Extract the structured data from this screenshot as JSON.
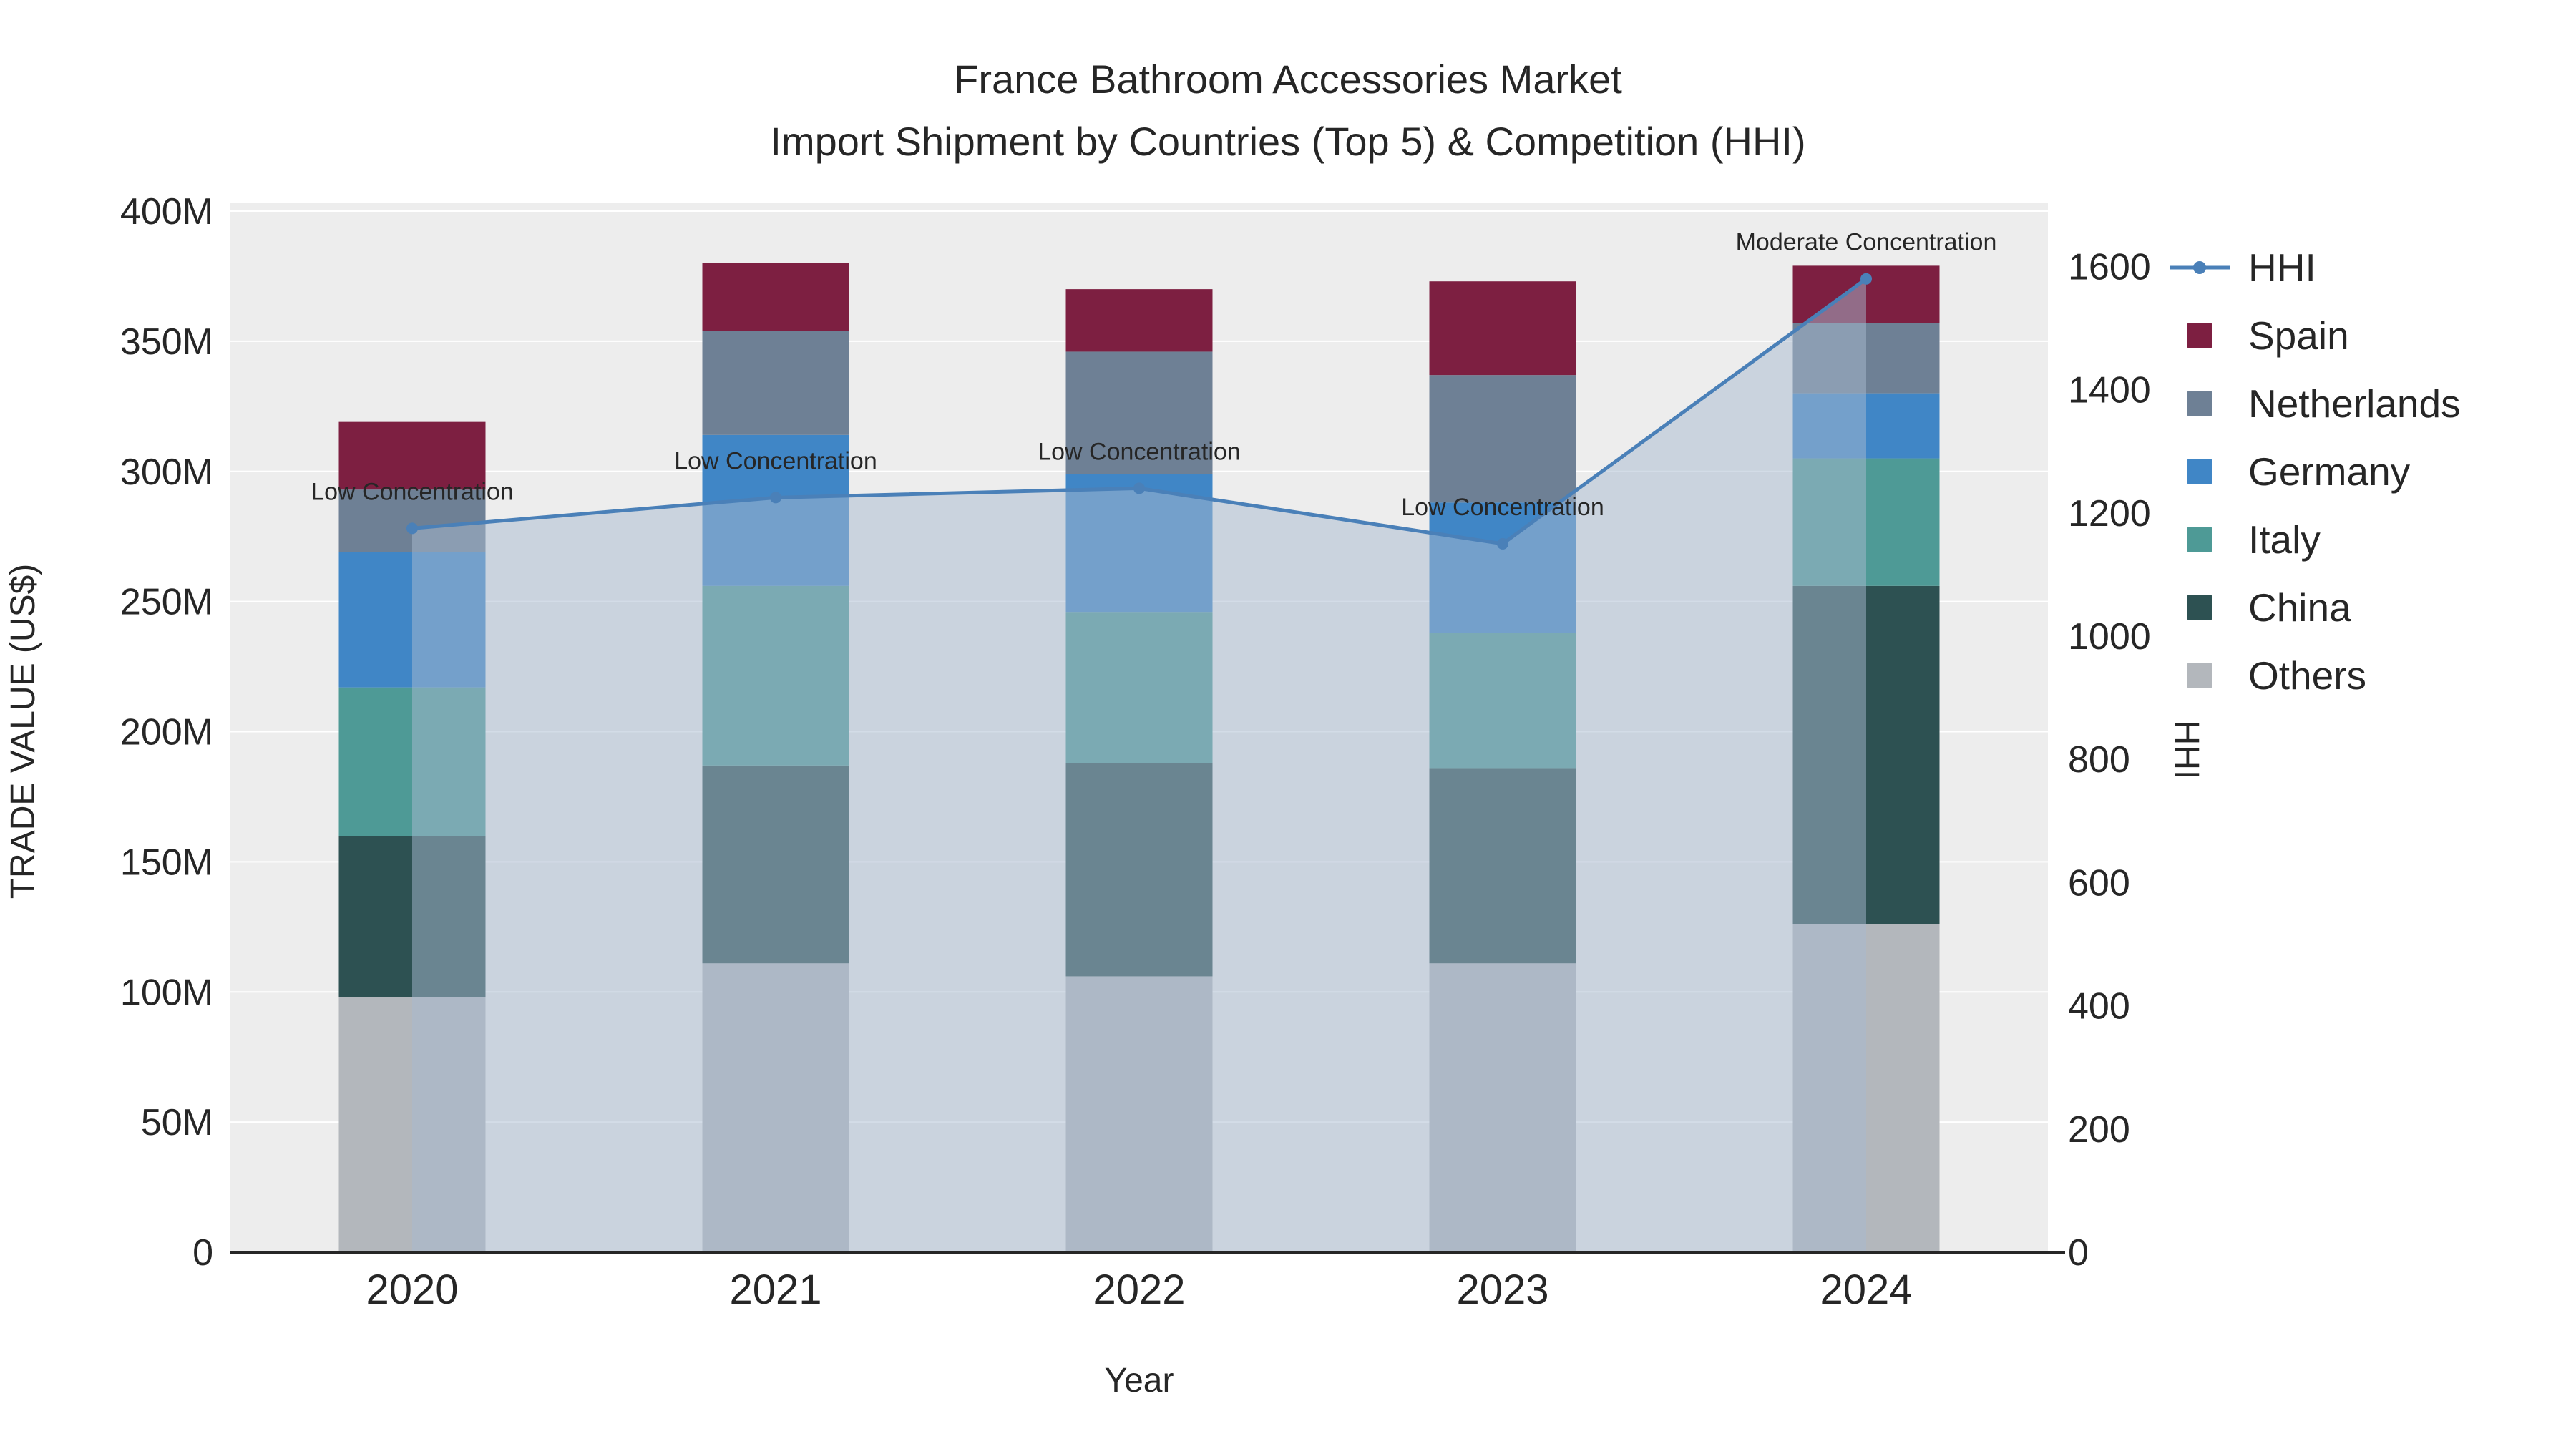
{
  "title": {
    "line1": "France Bathroom Accessories Market",
    "line2": "Import Shipment by Countries (Top 5) & Competition (HHI)"
  },
  "chart_data": {
    "type": "bar",
    "subtype": "stacked bars (trade value) with HHI line + shaded area on secondary axis",
    "categories": [
      "2020",
      "2021",
      "2022",
      "2023",
      "2024"
    ],
    "xlabel": "Year",
    "ylabel_left": "TRADE VALUE (US$)",
    "ylabel_right": "HHI",
    "y_left": {
      "min": 0,
      "max": 400,
      "tick_step": 50,
      "unit": "M (US$)",
      "tick_labels": [
        "0",
        "50M",
        "100M",
        "150M",
        "200M",
        "250M",
        "300M",
        "350M",
        "400M"
      ]
    },
    "y_right": {
      "min": 0,
      "max": 1690,
      "tick_step": 200,
      "tick_labels": [
        "0",
        "200",
        "400",
        "600",
        "800",
        "1000",
        "1200",
        "1400",
        "1600"
      ]
    },
    "series": [
      {
        "name": "Others",
        "color": "#b3b7bc",
        "values": [
          98,
          111,
          106,
          111,
          126
        ]
      },
      {
        "name": "China",
        "color": "#2d5152",
        "values": [
          62,
          76,
          82,
          75,
          130
        ]
      },
      {
        "name": "Italy",
        "color": "#4e9a96",
        "values": [
          57,
          69,
          58,
          52,
          49
        ]
      },
      {
        "name": "Germany",
        "color": "#4086c6",
        "values": [
          52,
          58,
          53,
          50,
          25
        ]
      },
      {
        "name": "Netherlands",
        "color": "#6e8095",
        "values": [
          24,
          40,
          47,
          49,
          27
        ]
      },
      {
        "name": "Spain",
        "color": "#7d1f41",
        "values": [
          26,
          26,
          24,
          36,
          22
        ]
      }
    ],
    "stack_totals": [
      319,
      380,
      370,
      373,
      379
    ],
    "line_series": {
      "name": "HHI",
      "color": "#4a80b8",
      "values": [
        1175,
        1225,
        1240,
        1150,
        1580
      ]
    },
    "annotations": [
      {
        "category": "2020",
        "text": "Low Concentration"
      },
      {
        "category": "2021",
        "text": "Low Concentration"
      },
      {
        "category": "2022",
        "text": "Low Concentration"
      },
      {
        "category": "2023",
        "text": "Low Concentration"
      },
      {
        "category": "2024",
        "text": "Moderate Concentration"
      }
    ],
    "legend_order": [
      "HHI",
      "Spain",
      "Netherlands",
      "Germany",
      "Italy",
      "China",
      "Others"
    ],
    "legend_position": "right",
    "grid": "horizontal",
    "style": {
      "plot_bg": "#ededed",
      "grid_color": "#ffffff",
      "area_fill": "rgba(168,186,208,0.5)",
      "axis_line_color": "#262626",
      "text_color": "#262626"
    }
  }
}
